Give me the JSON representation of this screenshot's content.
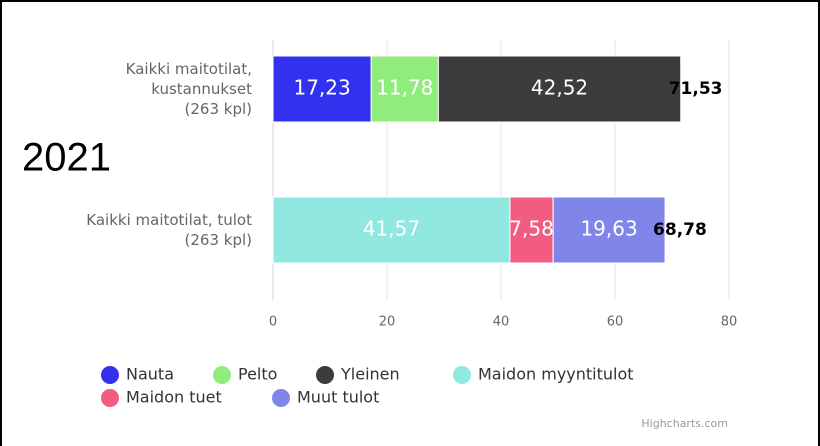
{
  "chart_data": {
    "type": "bar",
    "orientation": "horizontal",
    "stacked": true,
    "annotation": "2021",
    "credit": "Highcharts.com",
    "categories": [
      [
        "Kaikki maitotilat,",
        "kustannukset",
        "(263 kpl)"
      ],
      [
        "Kaikki maitotilat, tulot",
        "(263 kpl)"
      ]
    ],
    "series": [
      {
        "name": "Nauta",
        "color": "#3232ee",
        "values": [
          17.23,
          null
        ],
        "value_labels": [
          "17,23",
          null
        ]
      },
      {
        "name": "Pelto",
        "color": "#90ed7d",
        "values": [
          11.78,
          null
        ],
        "value_labels": [
          "11,78",
          null
        ]
      },
      {
        "name": "Yleinen",
        "color": "#3c3c3e",
        "values": [
          42.52,
          null
        ],
        "value_labels": [
          "42,52",
          null
        ]
      },
      {
        "name": "Maidon myyntitulot",
        "color": "#91e8e1",
        "values": [
          null,
          41.57
        ],
        "value_labels": [
          null,
          "41,57"
        ]
      },
      {
        "name": "Maidon tuet",
        "color": "#f15c80",
        "values": [
          null,
          7.58
        ],
        "value_labels": [
          null,
          "7,58"
        ]
      },
      {
        "name": "Muut tulot",
        "color": "#8085e9",
        "values": [
          null,
          19.63
        ],
        "value_labels": [
          null,
          "19,63"
        ]
      }
    ],
    "totals": [
      71.53,
      68.78
    ],
    "total_labels": [
      "71,53",
      "68,78"
    ],
    "xlim": [
      0,
      80
    ],
    "xticks": [
      0,
      20,
      40,
      60,
      80
    ],
    "grid": true
  }
}
